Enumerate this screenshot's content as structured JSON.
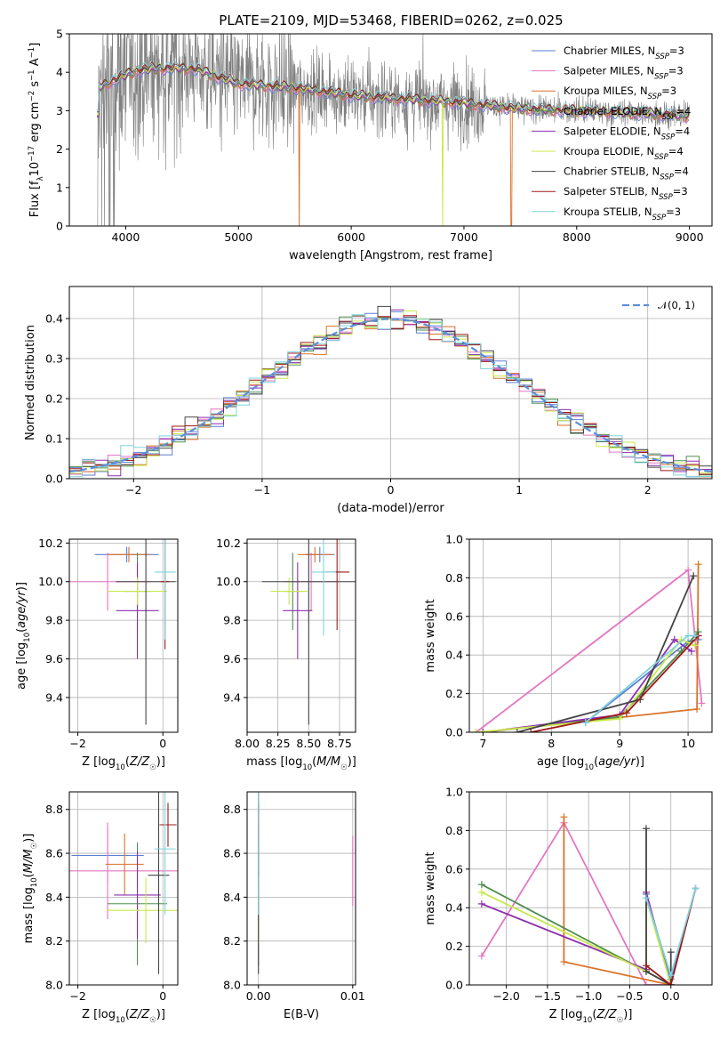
{
  "page_title": "PLATE=2109, MJD=53468, FIBERID=0262, z=0.025",
  "models": [
    {
      "name": "Chabrier MILES",
      "nssp": "3",
      "color": "#5b7fd6"
    },
    {
      "name": "Salpeter MILES",
      "nssp": "3",
      "color": "#e377c2"
    },
    {
      "name": "Kroupa MILES",
      "nssp": "3",
      "color": "#d9722a"
    },
    {
      "name": "Chabrier ELODIE",
      "nssp": "4",
      "color": "#4e8f4e"
    },
    {
      "name": "Salpeter ELODIE",
      "nssp": "4",
      "color": "#8e2fb0"
    },
    {
      "name": "Kroupa ELODIE",
      "nssp": "4",
      "color": "#c8e84a"
    },
    {
      "name": "Chabrier STELIB",
      "nssp": "4",
      "color": "#444444"
    },
    {
      "name": "Salpeter STELIB",
      "nssp": "3",
      "color": "#a01818"
    },
    {
      "name": "Kroupa STELIB",
      "nssp": "3",
      "color": "#7fd3dd"
    }
  ],
  "chart_data": [
    {
      "id": "spectrum",
      "type": "line",
      "xlabel": "wavelength [Angstrom, rest frame]",
      "ylabel": "Flux [f_λ10^-17 erg cm^-2 s^-1 A^-1]",
      "xlim": [
        3500,
        9200
      ],
      "ylim": [
        0,
        5
      ],
      "xticks": [
        4000,
        5000,
        6000,
        7000,
        8000,
        9000
      ],
      "yticks": [
        0,
        1,
        2,
        3,
        4,
        5
      ],
      "observed_color": "#7f7f7f",
      "continuum_points": [
        [
          3760,
          3.6
        ],
        [
          3900,
          3.8
        ],
        [
          4100,
          4.05
        ],
        [
          4300,
          4.1
        ],
        [
          4600,
          4.1
        ],
        [
          5000,
          3.7
        ],
        [
          5500,
          3.6
        ],
        [
          6000,
          3.4
        ],
        [
          6500,
          3.3
        ],
        [
          7000,
          3.2
        ],
        [
          7500,
          3.05
        ],
        [
          8000,
          3.0
        ],
        [
          8400,
          2.95
        ],
        [
          8800,
          2.9
        ],
        [
          9000,
          2.85
        ]
      ],
      "legend_position": "upper right"
    },
    {
      "id": "residual-histogram",
      "type": "histogram",
      "xlabel": "(data-model)/error",
      "ylabel": "Normed distribution",
      "xlim": [
        -2.5,
        2.5
      ],
      "ylim": [
        0,
        0.48
      ],
      "xticks": [
        -2,
        -1,
        0,
        1,
        2
      ],
      "yticks": [
        0.0,
        0.1,
        0.2,
        0.3,
        0.4
      ],
      "bin_width": 0.1,
      "reference": {
        "label": "𝒩(0, 1)",
        "mean": 0,
        "sigma": 1,
        "color": "#5b8fdc",
        "style": "dashed"
      },
      "legend_position": "upper right",
      "grid": true
    },
    {
      "id": "age-vs-Z",
      "type": "errorbar",
      "xlabel": "Z [log10(Z/Z☉)]",
      "ylabel": "age  [log10(age/yr)]",
      "xlim": [
        -2.2,
        0.35
      ],
      "ylim": [
        9.22,
        10.22
      ],
      "xticks": [
        -2,
        0
      ],
      "yticks": [
        9.4,
        9.6,
        9.8,
        10.0,
        10.2
      ],
      "grid": true,
      "points": [
        {
          "x": -0.85,
          "y": 10.14,
          "xerr": 0.75,
          "yerr": 0.04,
          "model": 0
        },
        {
          "x": -1.3,
          "y": 10.0,
          "xerr": 1.0,
          "yerr": 0.15,
          "model": 1
        },
        {
          "x": -0.8,
          "y": 10.14,
          "xerr": 0.5,
          "yerr": 0.04,
          "model": 2
        },
        {
          "x": -0.6,
          "y": 9.95,
          "xerr": 0.3,
          "yerr": 0.2,
          "model": 3
        },
        {
          "x": -0.6,
          "y": 9.85,
          "xerr": 0.5,
          "yerr": 0.25,
          "model": 4
        },
        {
          "x": -0.6,
          "y": 9.95,
          "xerr": 0.7,
          "yerr": 0.07,
          "model": 5
        },
        {
          "x": -0.4,
          "y": 10.0,
          "xerr": 0.7,
          "yerr": 0.74,
          "model": 6
        },
        {
          "x": 0.05,
          "y": 10.0,
          "xerr": 0.1,
          "yerr": 0.35,
          "model": 7
        },
        {
          "x": 0.05,
          "y": 10.05,
          "xerr": 0.25,
          "yerr": 0.35,
          "model": 8
        }
      ]
    },
    {
      "id": "age-vs-mass",
      "type": "errorbar",
      "xlabel": "mass [log10(M/M☉)]",
      "ylabel": "",
      "xlim": [
        8.0,
        8.88
      ],
      "ylim": [
        9.22,
        10.22
      ],
      "xticks": [
        8.0,
        8.25,
        8.5,
        8.75
      ],
      "yticks": [
        9.4,
        9.6,
        9.8,
        10.0,
        10.2
      ],
      "grid": true,
      "points": [
        {
          "x": 8.59,
          "y": 10.14,
          "xerr": 0.12,
          "yerr": 0.04,
          "model": 0
        },
        {
          "x": 8.52,
          "y": 10.0,
          "xerr": 0.22,
          "yerr": 0.15,
          "model": 1
        },
        {
          "x": 8.55,
          "y": 10.14,
          "xerr": 0.14,
          "yerr": 0.04,
          "model": 2
        },
        {
          "x": 8.37,
          "y": 9.95,
          "xerr": 0.08,
          "yerr": 0.2,
          "model": 3
        },
        {
          "x": 8.41,
          "y": 9.85,
          "xerr": 0.12,
          "yerr": 0.25,
          "model": 4
        },
        {
          "x": 8.34,
          "y": 9.95,
          "xerr": 0.15,
          "yerr": 0.07,
          "model": 5
        },
        {
          "x": 8.5,
          "y": 10.0,
          "xerr": 0.38,
          "yerr": 0.74,
          "model": 6
        },
        {
          "x": 8.73,
          "y": 10.05,
          "xerr": 0.1,
          "yerr": 0.3,
          "model": 7
        },
        {
          "x": 8.62,
          "y": 10.05,
          "xerr": 0.1,
          "yerr": 0.33,
          "model": 8
        }
      ]
    },
    {
      "id": "massweight-vs-age",
      "type": "line",
      "xlabel": "age  [log10(age/yr)]",
      "ylabel": "mass weight",
      "xlim": [
        6.8,
        10.35
      ],
      "ylim": [
        0,
        1
      ],
      "xticks": [
        7,
        8,
        9,
        10
      ],
      "yticks": [
        0.0,
        0.2,
        0.4,
        0.6,
        0.8,
        1.0
      ],
      "grid": true,
      "series": [
        {
          "model": 0,
          "x": [
            8.5,
            10.0,
            10.15
          ],
          "y": [
            0.05,
            0.47,
            0.48
          ]
        },
        {
          "model": 1,
          "x": [
            6.9,
            10.0,
            10.2
          ],
          "y": [
            0.0,
            0.84,
            0.15
          ]
        },
        {
          "model": 2,
          "x": [
            7.0,
            10.13,
            10.15
          ],
          "y": [
            0.0,
            0.12,
            0.87
          ]
        },
        {
          "model": 3,
          "x": [
            7.0,
            9.0,
            9.9,
            10.15
          ],
          "y": [
            0.0,
            0.08,
            0.42,
            0.52
          ]
        },
        {
          "model": 4,
          "x": [
            7.0,
            9.0,
            9.8,
            10.05
          ],
          "y": [
            0.0,
            0.09,
            0.48,
            0.42
          ]
        },
        {
          "model": 5,
          "x": [
            6.9,
            9.0,
            9.9,
            10.1
          ],
          "y": [
            0.0,
            0.07,
            0.48,
            0.45
          ]
        },
        {
          "model": 6,
          "x": [
            7.5,
            9.3,
            10.08
          ],
          "y": [
            0.0,
            0.17,
            0.81
          ]
        },
        {
          "model": 7,
          "x": [
            7.7,
            9.1,
            10.15
          ],
          "y": [
            0.0,
            0.1,
            0.5
          ]
        },
        {
          "model": 8,
          "x": [
            8.5,
            10.0,
            10.1
          ],
          "y": [
            0.05,
            0.5,
            0.5
          ]
        }
      ]
    },
    {
      "id": "mass-vs-Z",
      "type": "errorbar",
      "xlabel": "Z [log10(Z/Z☉)]",
      "ylabel": "mass [log10(M/M☉)]",
      "xlim": [
        -2.2,
        0.35
      ],
      "ylim": [
        8.0,
        8.88
      ],
      "xticks": [
        -2,
        0
      ],
      "yticks": [
        8.0,
        8.2,
        8.4,
        8.6,
        8.8
      ],
      "grid": true,
      "points": [
        {
          "x": -1.3,
          "y": 8.59,
          "xerr": 0.85,
          "yerr": 0.12,
          "model": 0
        },
        {
          "x": -1.3,
          "y": 8.52,
          "xerr": 2.0,
          "yerr": 0.22,
          "model": 1
        },
        {
          "x": -0.9,
          "y": 8.55,
          "xerr": 0.45,
          "yerr": 0.14,
          "model": 2
        },
        {
          "x": -0.6,
          "y": 8.37,
          "xerr": 0.7,
          "yerr": 0.28,
          "model": 3
        },
        {
          "x": -0.6,
          "y": 8.41,
          "xerr": 0.55,
          "yerr": 0.2,
          "model": 4
        },
        {
          "x": -0.4,
          "y": 8.34,
          "xerr": 0.9,
          "yerr": 0.15,
          "model": 5
        },
        {
          "x": -0.1,
          "y": 8.5,
          "xerr": 0.25,
          "yerr": 0.45,
          "model": 6
        },
        {
          "x": 0.12,
          "y": 8.73,
          "xerr": 0.2,
          "yerr": 0.1,
          "model": 7
        },
        {
          "x": 0.05,
          "y": 8.62,
          "xerr": 0.25,
          "yerr": 0.3,
          "model": 8
        }
      ]
    },
    {
      "id": "mass-vs-ebv",
      "type": "errorbar",
      "xlabel": "E(B-V)",
      "ylabel": "",
      "xlim": [
        -0.0012,
        0.0103
      ],
      "ylim": [
        8.0,
        8.88
      ],
      "xticks": [
        0.0,
        0.01
      ],
      "xticklabels": [
        "0.00",
        "0.01"
      ],
      "yticks": [
        8.0,
        8.2,
        8.4,
        8.6,
        8.8
      ],
      "grid": true,
      "points": [
        {
          "x": 0.0,
          "y": 8.59,
          "xerr": 0,
          "yerr": 0.12,
          "model": 0
        },
        {
          "x": 0.01,
          "y": 8.52,
          "xerr": 0,
          "yerr": 0.16,
          "model": 1
        },
        {
          "x": 0.0,
          "y": 8.55,
          "xerr": 0,
          "yerr": 0.14,
          "model": 2
        },
        {
          "x": 0.0,
          "y": 8.37,
          "xerr": 0,
          "yerr": 0.28,
          "model": 3
        },
        {
          "x": 0.0,
          "y": 8.41,
          "xerr": 0,
          "yerr": 0.2,
          "model": 4
        },
        {
          "x": 0.0,
          "y": 8.34,
          "xerr": 0,
          "yerr": 0.15,
          "model": 5
        },
        {
          "x": 0.0,
          "y": 8.5,
          "xerr": 0,
          "yerr": 0.45,
          "model": 6
        },
        {
          "x": 0.0,
          "y": 8.73,
          "xerr": 0,
          "yerr": 0.1,
          "model": 7
        },
        {
          "x": 0.0,
          "y": 8.62,
          "xerr": 0,
          "yerr": 0.3,
          "model": 8
        }
      ]
    },
    {
      "id": "massweight-vs-Z",
      "type": "line",
      "xlabel": "Z [log10(Z/Z☉)]",
      "ylabel": "mass weight",
      "xlim": [
        -2.45,
        0.5
      ],
      "ylim": [
        0,
        1
      ],
      "xticks": [
        -2.0,
        -1.5,
        -1.0,
        -0.5,
        0.0
      ],
      "yticks": [
        0.0,
        0.2,
        0.4,
        0.6,
        0.8,
        1.0
      ],
      "grid": true,
      "series": [
        {
          "model": 0,
          "x": [
            -0.3,
            0.0,
            0.3
          ],
          "y": [
            0.47,
            0.03,
            0.5
          ]
        },
        {
          "model": 1,
          "x": [
            -2.3,
            -1.3,
            -0.3,
            0.0
          ],
          "y": [
            0.15,
            0.84,
            0.0,
            0.0
          ]
        },
        {
          "model": 2,
          "x": [
            -1.3,
            -1.3,
            0.0,
            0.0
          ],
          "y": [
            0.87,
            0.12,
            0.0,
            0.0
          ]
        },
        {
          "model": 3,
          "x": [
            -2.3,
            -0.3,
            0.0
          ],
          "y": [
            0.52,
            0.07,
            0.0
          ]
        },
        {
          "model": 4,
          "x": [
            -2.3,
            -0.3,
            -0.3,
            0.0
          ],
          "y": [
            0.42,
            0.08,
            0.48,
            0.0
          ]
        },
        {
          "model": 5,
          "x": [
            -2.3,
            -0.3,
            -0.3,
            0.0
          ],
          "y": [
            0.48,
            0.07,
            0.45,
            0.0
          ]
        },
        {
          "model": 6,
          "x": [
            -0.3,
            -0.3,
            0.0,
            0.0
          ],
          "y": [
            0.81,
            0.07,
            0.0,
            0.17
          ]
        },
        {
          "model": 7,
          "x": [
            -0.3,
            0.0,
            0.3
          ],
          "y": [
            0.1,
            0.0,
            0.5
          ]
        },
        {
          "model": 8,
          "x": [
            -0.3,
            0.0,
            0.3
          ],
          "y": [
            0.45,
            0.05,
            0.5
          ]
        }
      ]
    }
  ]
}
